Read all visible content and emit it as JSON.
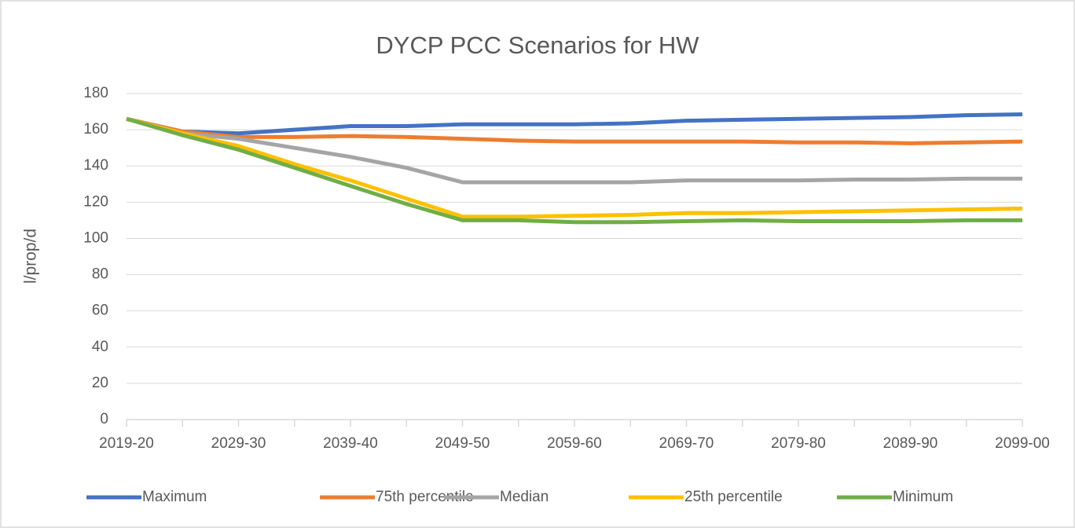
{
  "chart_data": {
    "type": "line",
    "title": "DYCP PCC Scenarios for HW",
    "y_label": "l/prop/d",
    "categories": [
      "2019-20",
      null,
      "2029-30",
      null,
      "2039-40",
      null,
      "2049-50",
      null,
      "2059-60",
      null,
      "2069-70",
      null,
      "2079-80",
      null,
      "2089-90",
      null,
      "2099-00"
    ],
    "series": [
      {
        "name": "Maximum",
        "color": "#4472c4",
        "values": [
          166,
          159,
          158,
          160,
          162,
          162,
          163,
          163,
          163,
          163.5,
          165,
          165.5,
          166,
          166.5,
          167,
          168,
          168.5
        ]
      },
      {
        "name": "75th percentile",
        "color": "#ed7d31",
        "values": [
          166,
          159,
          156,
          156,
          156.5,
          156,
          155,
          154,
          153.5,
          153.5,
          153.5,
          153.5,
          153,
          153,
          152.5,
          153,
          153.5
        ]
      },
      {
        "name": "Median",
        "color": "#a5a5a5",
        "values": [
          166,
          158,
          155,
          150,
          145,
          139,
          131,
          131,
          131,
          131,
          132,
          132,
          132,
          132.5,
          132.5,
          133,
          133
        ]
      },
      {
        "name": "25th percentile",
        "color": "#ffc000",
        "values": [
          166,
          158,
          151,
          141,
          132,
          122,
          112,
          112,
          112.5,
          113,
          114,
          114,
          114.5,
          115,
          115.5,
          116,
          116.5
        ]
      },
      {
        "name": "Minimum",
        "color": "#70ad47",
        "values": [
          166,
          157,
          149,
          139,
          129,
          119,
          110,
          110,
          109,
          109,
          109.5,
          110,
          109.5,
          109.5,
          109.5,
          110,
          110
        ]
      }
    ],
    "ylim": [
      0,
      180
    ],
    "yticks": [
      0,
      20,
      40,
      60,
      80,
      100,
      120,
      140,
      160,
      180
    ],
    "grid": true,
    "legend": "bottom"
  }
}
